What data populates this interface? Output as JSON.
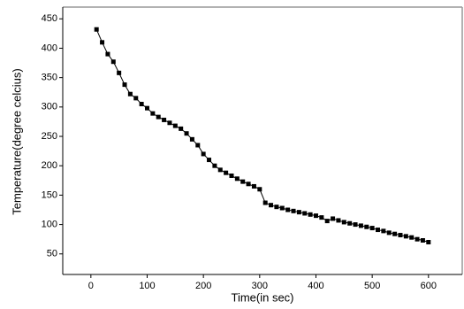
{
  "chart_data": {
    "type": "line",
    "x_label": "Time(in sec)",
    "y_label": "Temperature(degree celcius)",
    "x": [
      10,
      20,
      30,
      40,
      50,
      60,
      70,
      80,
      90,
      100,
      110,
      120,
      130,
      140,
      150,
      160,
      170,
      180,
      190,
      200,
      210,
      220,
      230,
      240,
      250,
      260,
      270,
      280,
      290,
      300,
      310,
      320,
      330,
      340,
      350,
      360,
      370,
      380,
      390,
      400,
      410,
      420,
      430,
      440,
      450,
      460,
      470,
      480,
      490,
      500,
      510,
      520,
      530,
      540,
      550,
      560,
      570,
      580,
      590,
      600
    ],
    "series": [
      {
        "color": "#000000",
        "values": [
          432,
          410,
          390,
          377,
          358,
          338,
          322,
          315,
          305,
          298,
          289,
          283,
          278,
          273,
          268,
          263,
          255,
          245,
          235,
          220,
          210,
          200,
          193,
          188,
          183,
          178,
          173,
          169,
          165,
          160,
          137,
          133,
          130,
          128,
          125,
          123,
          121,
          119,
          117,
          115,
          112,
          106,
          110,
          107,
          104,
          102,
          100,
          98,
          96,
          94,
          91,
          89,
          86,
          84,
          82,
          80,
          78,
          75,
          73,
          70
        ]
      }
    ],
    "xlim": [
      -50,
      660
    ],
    "ylim": [
      15,
      470
    ],
    "xticks": [
      0,
      100,
      200,
      300,
      400,
      500,
      600
    ],
    "yticks": [
      50,
      100,
      150,
      200,
      250,
      300,
      350,
      400,
      450
    ]
  }
}
